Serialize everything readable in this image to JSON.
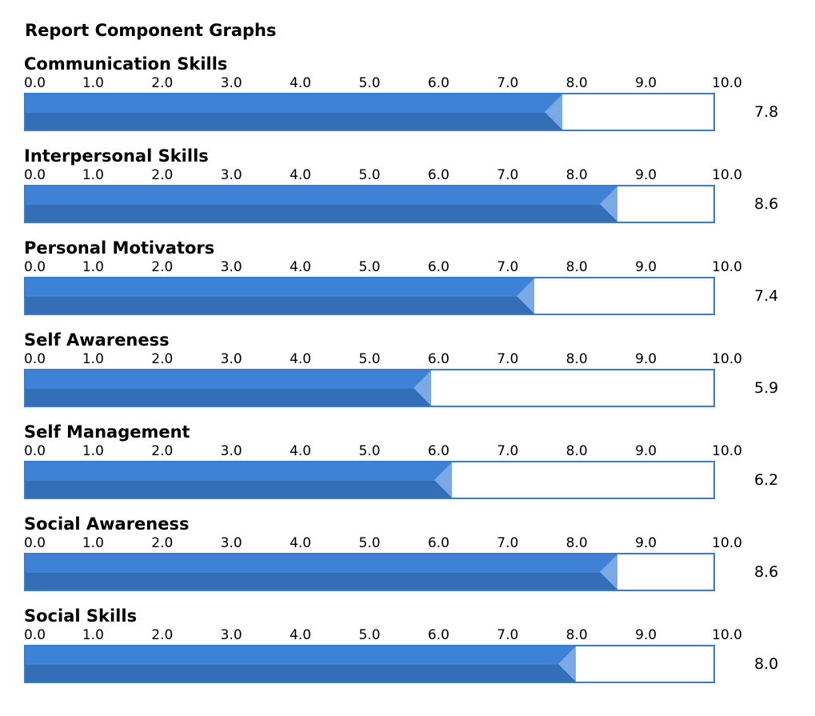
{
  "page": {
    "title": "Report Component Graphs"
  },
  "colors": {
    "fill_top": "#3e82d6",
    "fill_bottom": "#336eb6",
    "fill_tip": "#7aa9e3",
    "border": "#3a7bd0"
  },
  "chart_data": {
    "type": "bar",
    "orientation": "horizontal",
    "xlim": [
      0,
      10
    ],
    "ticks": [
      "0.0",
      "1.0",
      "2.0",
      "3.0",
      "4.0",
      "5.0",
      "6.0",
      "7.0",
      "8.0",
      "9.0",
      "10.0"
    ],
    "categories": [
      "Communication Skills",
      "Interpersonal Skills",
      "Personal Motivators",
      "Self Awareness",
      "Self Management",
      "Social Awareness",
      "Social Skills"
    ],
    "values": [
      7.8,
      8.6,
      7.4,
      5.9,
      6.2,
      8.6,
      8.0
    ],
    "value_labels": [
      "7.8",
      "8.6",
      "7.4",
      "5.9",
      "6.2",
      "8.6",
      "8.0"
    ]
  }
}
